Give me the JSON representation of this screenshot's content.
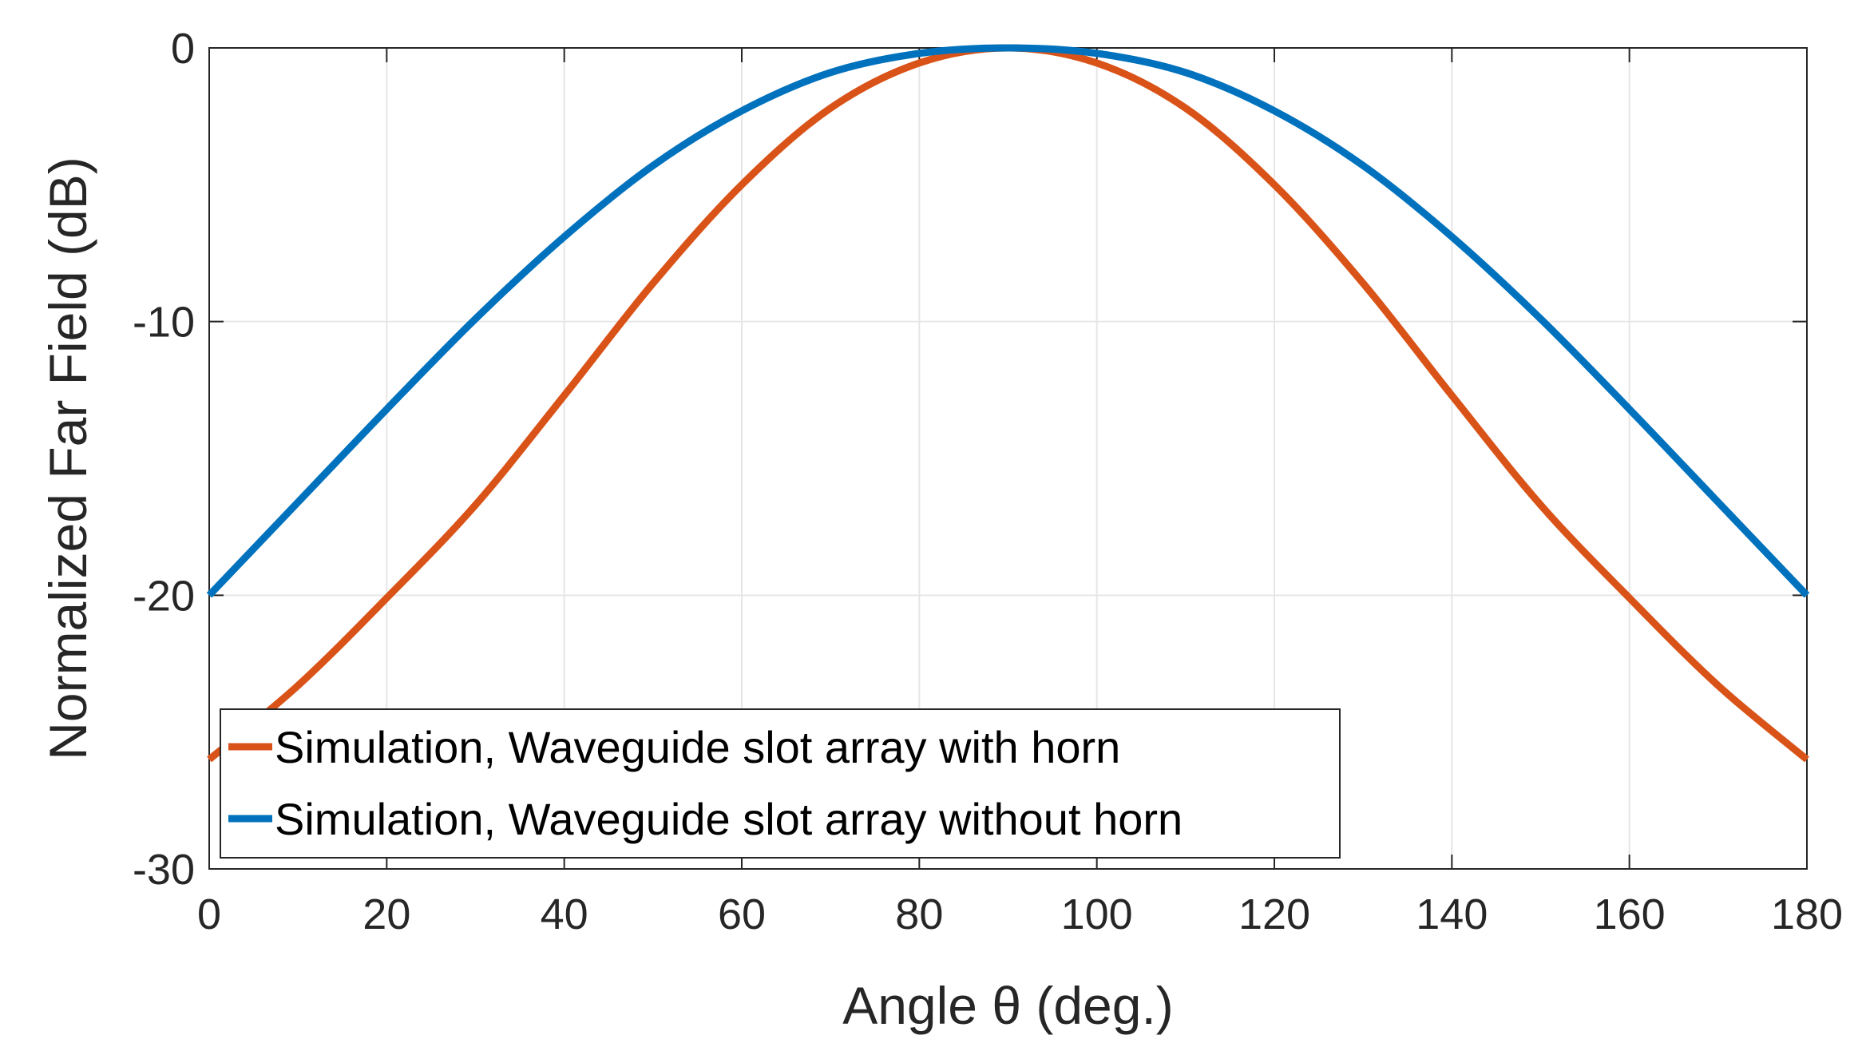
{
  "chart_data": {
    "type": "line",
    "title": "",
    "xlabel": "Angle θ (deg.)",
    "ylabel": "Normalized Far Field (dB)",
    "xlim": [
      0,
      180
    ],
    "ylim": [
      -30,
      0
    ],
    "xticks": [
      0,
      20,
      40,
      60,
      80,
      100,
      120,
      140,
      160,
      180
    ],
    "yticks": [
      0,
      -10,
      -20,
      -30
    ],
    "grid": true,
    "legend_position": "bottom-left",
    "x": [
      0,
      10,
      20,
      30,
      40,
      50,
      60,
      70,
      80,
      90,
      100,
      110,
      120,
      130,
      140,
      150,
      160,
      170,
      180
    ],
    "series": [
      {
        "name": "Simulation, Waveguide slot array with horn",
        "color": "#D95319",
        "values": [
          -26.0,
          -23.3,
          -20.1,
          -16.7,
          -12.7,
          -8.6,
          -5.0,
          -2.2,
          -0.55,
          0.0,
          -0.55,
          -2.2,
          -5.0,
          -8.6,
          -12.7,
          -16.7,
          -20.1,
          -23.3,
          -26.0
        ]
      },
      {
        "name": "Simulation, Waveguide slot array without horn",
        "color": "#0072BD",
        "values": [
          -20.0,
          -16.6,
          -13.2,
          -9.9,
          -6.9,
          -4.3,
          -2.3,
          -0.9,
          -0.2,
          0.0,
          -0.2,
          -0.9,
          -2.3,
          -4.3,
          -6.9,
          -9.9,
          -13.2,
          -16.6,
          -20.0
        ]
      }
    ]
  }
}
